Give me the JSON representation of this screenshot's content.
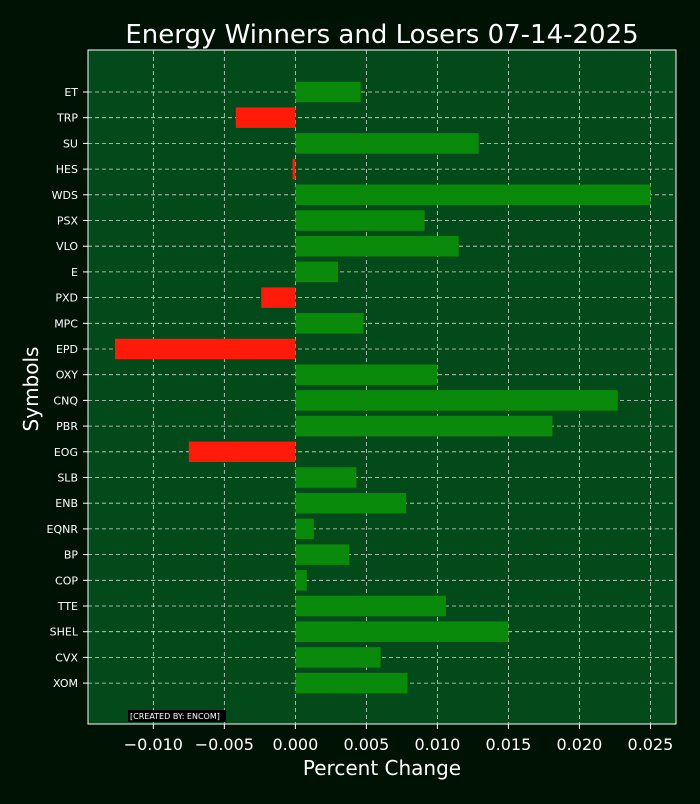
{
  "chart_data": {
    "type": "bar",
    "orientation": "horizontal",
    "title": "Energy Winners and Losers 07-14-2025",
    "xlabel": "Percent Change",
    "ylabel": "Symbols",
    "xlim": [
      -0.0146,
      0.0268
    ],
    "xticks": [
      -0.01,
      -0.005,
      0.0,
      0.005,
      0.01,
      0.015,
      0.02,
      0.025
    ],
    "xtick_labels": [
      "−0.010",
      "−0.005",
      "0.000",
      "0.005",
      "0.010",
      "0.015",
      "0.020",
      "0.025"
    ],
    "grid": true,
    "categories": [
      "ET",
      "TRP",
      "SU",
      "HES",
      "WDS",
      "PSX",
      "VLO",
      "E",
      "PXD",
      "MPC",
      "EPD",
      "OXY",
      "CNQ",
      "PBR",
      "EOG",
      "SLB",
      "ENB",
      "EQNR",
      "BP",
      "COP",
      "TTE",
      "SHEL",
      "CVX",
      "XOM"
    ],
    "values": [
      0.0046,
      -0.0042,
      0.0129,
      -0.0002,
      0.025,
      0.0091,
      0.0115,
      0.003,
      -0.0024,
      0.0048,
      -0.0127,
      0.01,
      0.0227,
      0.0181,
      -0.0075,
      0.0043,
      0.0078,
      0.0013,
      0.0038,
      0.0008,
      0.0106,
      0.015,
      0.006,
      0.0079
    ],
    "colors": {
      "positive": "#0a8a0a",
      "negative": "#ff1a0a",
      "plot_background": "#034a1a",
      "figure_background": "#001204",
      "grid": "#cfd8cf",
      "text": "#ffffff"
    },
    "annotation": "[CREATED BY: ENCOM]"
  }
}
